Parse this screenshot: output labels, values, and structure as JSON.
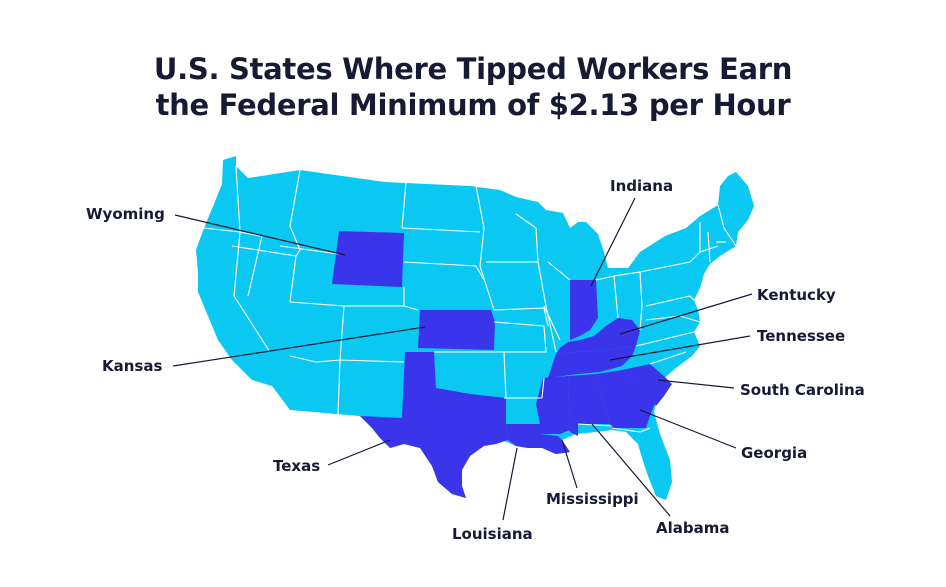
{
  "title": {
    "line1": "U.S. States Where Tipped Workers Earn",
    "line2": "the Federal Minimum of $2.13 per Hour"
  },
  "colors": {
    "other_states": "#0bc8f2",
    "highlighted_states": "#3a34ea",
    "state_border": "#ffffff",
    "text": "#161a33"
  },
  "highlighted_states": [
    "Wyoming",
    "Kansas",
    "Texas",
    "Louisiana",
    "Mississippi",
    "Alabama",
    "Georgia",
    "South Carolina",
    "Tennessee",
    "Kentucky",
    "Indiana"
  ],
  "labels": {
    "wyoming": "Wyoming",
    "kansas": "Kansas",
    "texas": "Texas",
    "louisiana": "Louisiana",
    "mississippi": "Mississippi",
    "alabama": "Alabama",
    "georgia": "Georgia",
    "south_carolina": "South Carolina",
    "tennessee": "Tennessee",
    "kentucky": "Kentucky",
    "indiana": "Indiana"
  }
}
